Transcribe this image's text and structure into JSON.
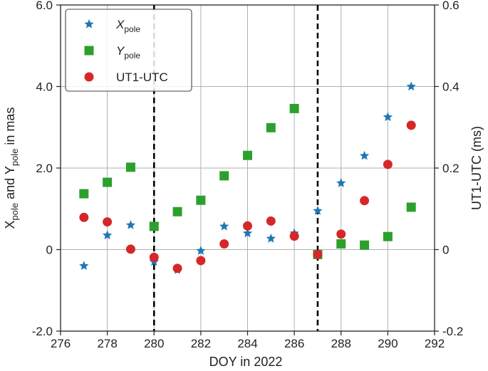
{
  "chart_data": {
    "type": "scatter",
    "title": "",
    "xlabel": "DOY in 2022",
    "ylabel_left": {
      "parts": [
        [
          "X",
          ""
        ],
        [
          "pole",
          "sub"
        ],
        [
          " and Y",
          ""
        ],
        [
          "pole",
          "sub"
        ],
        [
          " in mas",
          ""
        ]
      ]
    },
    "ylabel_right": "UT1-UTC (ms)",
    "xlim": [
      276,
      292
    ],
    "ylim_left": [
      -2.0,
      6.0
    ],
    "ylim_right": [
      -0.2,
      0.6
    ],
    "x_ticks": [
      "276",
      "278",
      "280",
      "282",
      "284",
      "286",
      "288",
      "290",
      "292"
    ],
    "y_ticks_left": [
      "-2.0",
      "0",
      "2.0",
      "4.0",
      "6.0"
    ],
    "y_ticks_right": [
      "-0.2",
      "0",
      "0.2",
      "0.4",
      "0.6"
    ],
    "grid": true,
    "legend_position": "top-left",
    "vlines": [
      280,
      287
    ],
    "series": [
      {
        "id": "xpole",
        "legend": {
          "main": "X",
          "sub": "pole",
          "italic": true
        },
        "marker": "star",
        "color": "#1f77b4",
        "axis": "left",
        "x": [
          277,
          278,
          279,
          280,
          281,
          282,
          283,
          284,
          285,
          286,
          287,
          288,
          289,
          290,
          291
        ],
        "y": [
          -0.4,
          0.35,
          0.6,
          -0.3,
          -0.5,
          -0.03,
          0.57,
          0.4,
          0.27,
          0.4,
          0.95,
          1.63,
          2.3,
          3.25,
          4.0
        ]
      },
      {
        "id": "ypole",
        "legend": {
          "main": "Y",
          "sub": "pole",
          "italic": true
        },
        "marker": "square",
        "color": "#2ca02c",
        "axis": "left",
        "x": [
          277,
          278,
          279,
          280,
          281,
          282,
          283,
          284,
          285,
          286,
          287,
          288,
          289,
          290,
          291
        ],
        "y": [
          1.37,
          1.65,
          2.02,
          0.57,
          0.93,
          1.21,
          1.81,
          2.31,
          2.99,
          3.46,
          -0.12,
          0.14,
          0.11,
          0.32,
          1.04
        ]
      },
      {
        "id": "ut1utc",
        "legend": {
          "main": "UT1-UTC",
          "sub": "",
          "italic": false
        },
        "marker": "circle",
        "color": "#d62728",
        "axis": "right",
        "x": [
          277,
          278,
          279,
          280,
          281,
          282,
          283,
          284,
          285,
          286,
          287,
          288,
          289,
          290,
          291
        ],
        "y": [
          0.079,
          0.068,
          0.001,
          -0.019,
          -0.046,
          -0.027,
          0.014,
          0.058,
          0.07,
          0.033,
          -0.012,
          0.038,
          0.12,
          0.209,
          0.305
        ]
      }
    ]
  }
}
